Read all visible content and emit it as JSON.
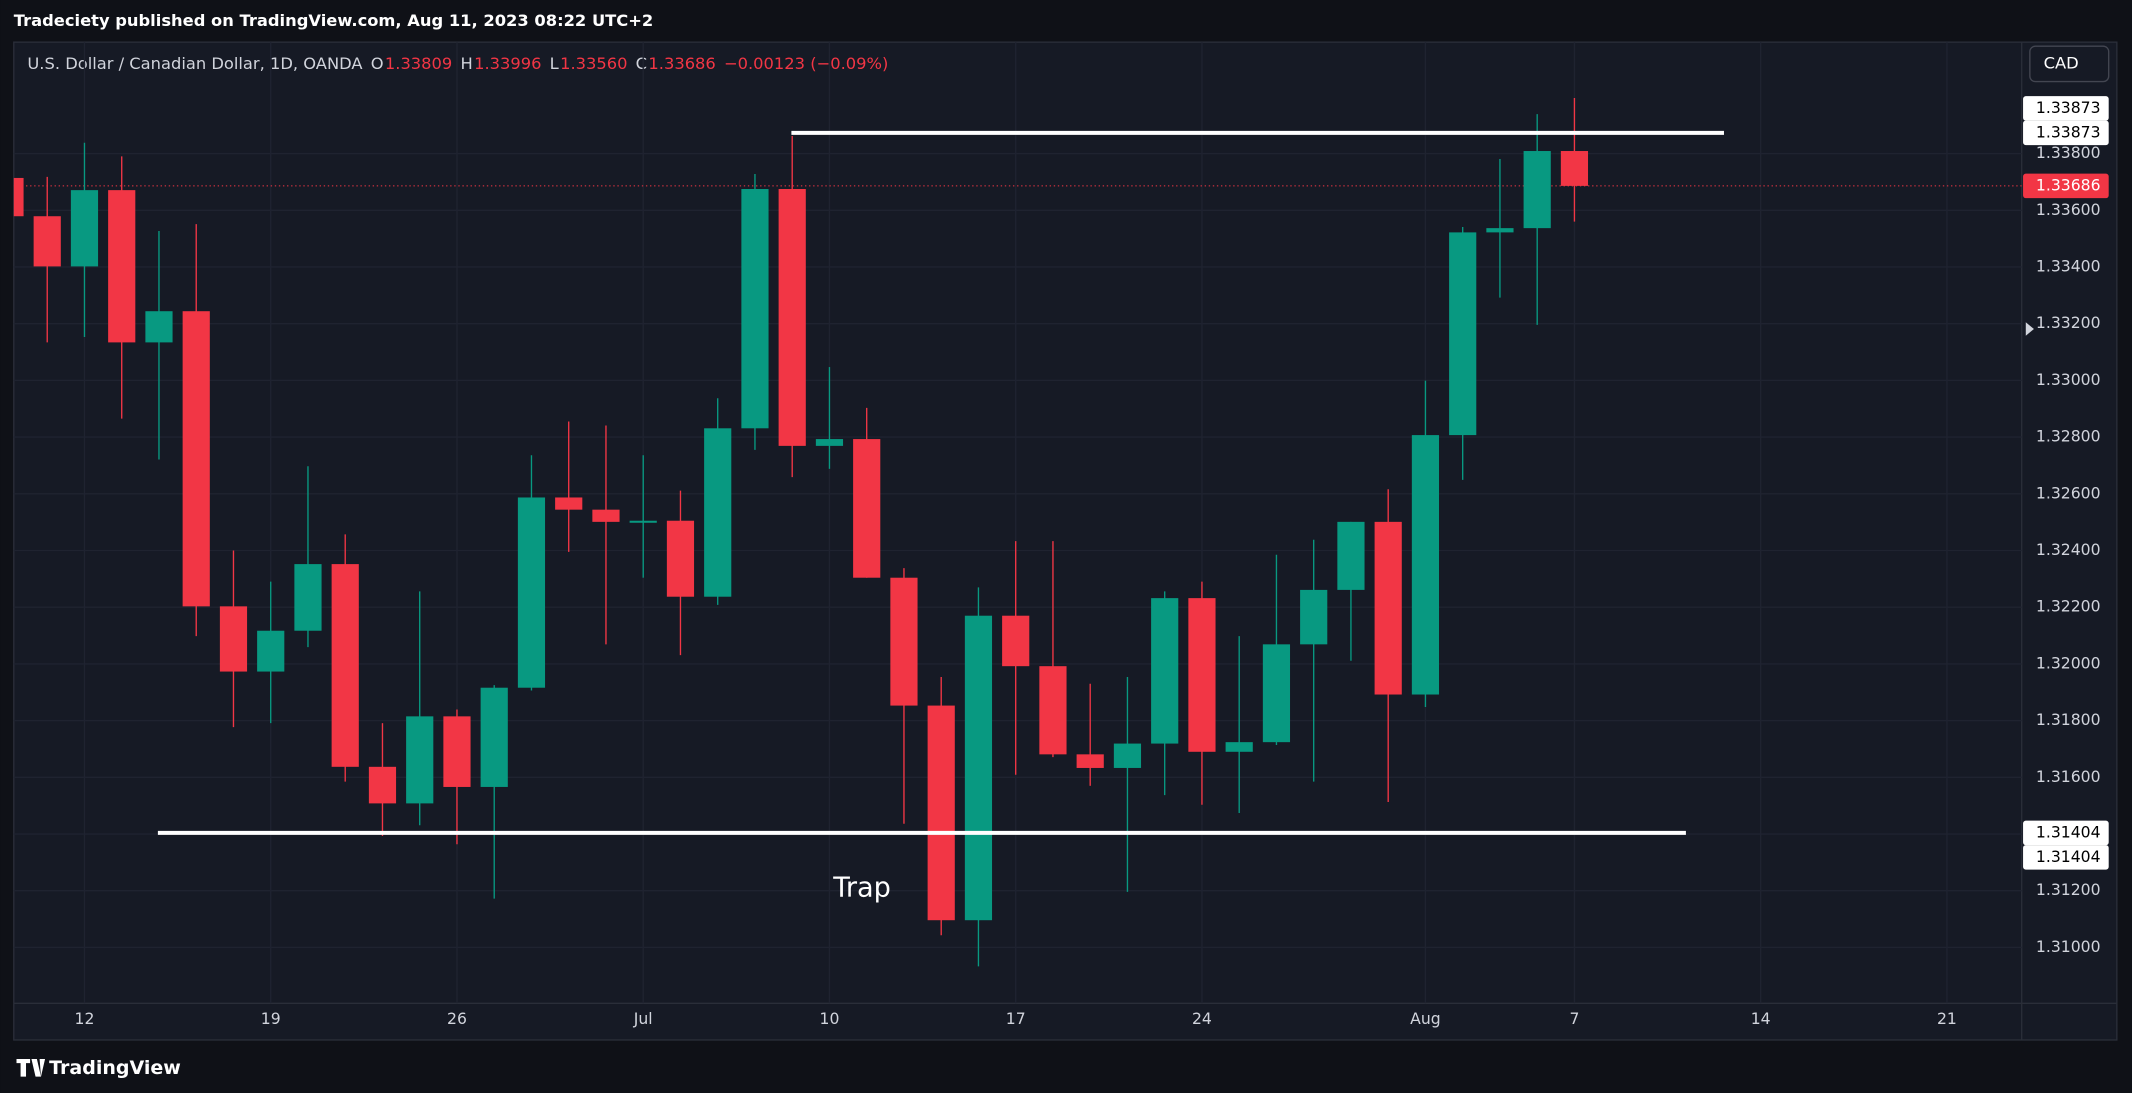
{
  "page_header": "Tradeciety published on TradingView.com, Aug 11, 2023 08:22 UTC+2",
  "symbol": "U.S. Dollar / Canadian Dollar, 1D, OANDA",
  "ohlc": [
    {
      "key": "O",
      "value": "1.33809"
    },
    {
      "key": "H",
      "value": "1.33996"
    },
    {
      "key": "L",
      "value": "1.33560"
    },
    {
      "key": "C",
      "value": "1.33686"
    }
  ],
  "change": "−0.00123 (−0.09%)",
  "currency_button": "CAD",
  "footer_brand": "TradingView",
  "chart_data": {
    "type": "candlestick",
    "up_color": "#089981",
    "down_color": "#f23645",
    "grid": true,
    "categories": [
      null,
      null,
      "12",
      null,
      null,
      null,
      null,
      "19",
      null,
      null,
      null,
      null,
      "26",
      null,
      null,
      null,
      null,
      "Jul",
      null,
      null,
      null,
      null,
      "10",
      null,
      null,
      null,
      null,
      "17",
      null,
      null,
      null,
      null,
      "24",
      null,
      null,
      null,
      null,
      null,
      "Aug",
      null,
      null,
      null,
      "7",
      null,
      null,
      null,
      null,
      "14",
      null,
      null,
      null,
      null,
      "21",
      null,
      null
    ],
    "open": [
      1.33714,
      1.33579,
      1.33402,
      1.33671,
      1.33134,
      1.33244,
      1.32203,
      1.31973,
      1.32117,
      1.32352,
      1.31637,
      1.31508,
      1.31815,
      1.31566,
      1.31916,
      1.32587,
      1.32544,
      1.32501,
      1.32505,
      1.32237,
      1.32831,
      1.33675,
      1.32769,
      1.32793,
      1.32304,
      1.31853,
      1.31096,
      1.3217,
      1.31992,
      1.31681,
      1.31633,
      1.31719,
      1.32232,
      1.3169,
      1.31724,
      1.32069,
      1.32261,
      1.32501,
      1.31892,
      1.32807,
      1.33522,
      1.33537,
      1.33809,
      null,
      null,
      null,
      null,
      null,
      null,
      null,
      null,
      null,
      null,
      null,
      null
    ],
    "high": [
      1.33738,
      1.33718,
      1.33838,
      1.3379,
      1.33527,
      1.33551,
      1.324,
      1.3229,
      1.32697,
      1.32457,
      1.31791,
      1.32256,
      1.31839,
      1.31925,
      1.32736,
      1.32855,
      1.32841,
      1.32736,
      1.32611,
      1.32937,
      1.33728,
      1.33862,
      1.33047,
      1.32903,
      1.32338,
      1.31954,
      1.3227,
      1.32433,
      1.32433,
      1.3193,
      1.31954,
      1.32256,
      1.3229,
      1.32098,
      1.32385,
      1.32438,
      1.32501,
      1.32616,
      1.32999,
      1.33541,
      1.33781,
      1.33939,
      1.33996,
      null,
      null,
      null,
      null,
      null,
      null,
      null,
      null,
      null,
      null,
      null,
      null
    ],
    "low": [
      1.33575,
      1.33134,
      1.33153,
      1.32865,
      1.32721,
      1.32098,
      1.31777,
      1.31791,
      1.32059,
      1.31585,
      1.31393,
      1.31431,
      1.31364,
      1.31172,
      1.31906,
      1.32395,
      1.32069,
      1.32304,
      1.32031,
      1.32208,
      1.32755,
      1.32659,
      1.32688,
      1.32304,
      1.31436,
      1.31043,
      1.30933,
      1.31609,
      1.31671,
      1.3157,
      1.31196,
      1.31537,
      1.31503,
      1.31474,
      1.31714,
      1.31585,
      1.32011,
      1.31513,
      1.31848,
      1.32649,
      1.33292,
      1.33196,
      1.3356,
      null,
      null,
      null,
      null,
      null,
      null,
      null,
      null,
      null,
      null,
      null,
      null
    ],
    "close": [
      1.33579,
      1.33402,
      1.33671,
      1.33134,
      1.33244,
      1.32203,
      1.31973,
      1.32117,
      1.32352,
      1.31637,
      1.31508,
      1.31815,
      1.31566,
      1.31916,
      1.32587,
      1.32544,
      1.32501,
      1.32505,
      1.32237,
      1.32831,
      1.33675,
      1.32769,
      1.32793,
      1.32304,
      1.31853,
      1.31096,
      1.3217,
      1.31992,
      1.31681,
      1.31633,
      1.31719,
      1.32232,
      1.3169,
      1.31724,
      1.32069,
      1.32261,
      1.32501,
      1.31892,
      1.32807,
      1.33522,
      1.33537,
      1.33809,
      1.33686,
      null,
      null,
      null,
      null,
      null,
      null,
      null,
      null,
      null,
      null,
      null,
      null
    ],
    "ylim": [
      1.30803,
      1.34193
    ],
    "yticks": [
      {
        "value": 1.31,
        "label": "1.31000"
      },
      {
        "value": 1.312,
        "label": "1.31200"
      },
      {
        "value": 1.314,
        "label": "1.31400"
      },
      {
        "value": 1.316,
        "label": "1.31600"
      },
      {
        "value": 1.318,
        "label": "1.31800"
      },
      {
        "value": 1.32,
        "label": "1.32000"
      },
      {
        "value": 1.322,
        "label": "1.32200"
      },
      {
        "value": 1.324,
        "label": "1.32400"
      },
      {
        "value": 1.326,
        "label": "1.32600"
      },
      {
        "value": 1.328,
        "label": "1.32800"
      },
      {
        "value": 1.33,
        "label": "1.33000"
      },
      {
        "value": 1.332,
        "label": "1.33200"
      },
      {
        "value": 1.334,
        "label": "1.33400"
      },
      {
        "value": 1.336,
        "label": "1.33600"
      },
      {
        "value": 1.338,
        "label": "1.33800"
      }
    ],
    "horizontal_lines": [
      {
        "value": 1.33873,
        "label": "1.33873"
      },
      {
        "value": 1.31404,
        "label": "1.31404"
      }
    ],
    "last_price": {
      "value": 1.33686,
      "label": "1.33686"
    },
    "annotation": "Trap"
  }
}
